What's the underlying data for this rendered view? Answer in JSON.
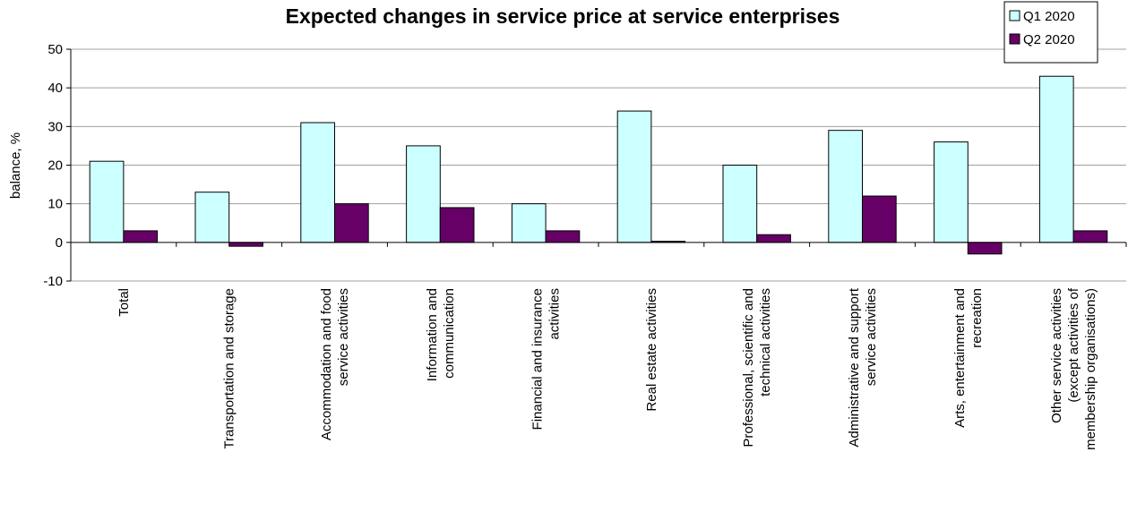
{
  "chart_data": {
    "type": "bar",
    "title": "Expected changes in service price at service enterprises",
    "xlabel": "",
    "ylabel": "balance, %",
    "ylim": [
      -10,
      50
    ],
    "yticks": [
      -10,
      0,
      10,
      20,
      30,
      40,
      50
    ],
    "grid": true,
    "legend_position": "top-right",
    "categories": [
      [
        "Total"
      ],
      [
        "Transportation and storage"
      ],
      [
        "Accommodation and food",
        "service activities"
      ],
      [
        "Information and",
        "communication"
      ],
      [
        "Financial and insurance",
        "activities"
      ],
      [
        "Real estate activities"
      ],
      [
        "Professional, scientific and",
        "technical activities"
      ],
      [
        "Administrative and support",
        "service activities"
      ],
      [
        "Arts, entertainment and",
        "recreation"
      ],
      [
        "Other service activities",
        "(except activities of",
        "membership organisations)"
      ]
    ],
    "series": [
      {
        "name": "Q1 2020",
        "color": "#ccffff",
        "values": [
          21,
          13,
          31,
          25,
          10,
          34,
          20,
          29,
          26,
          43
        ]
      },
      {
        "name": "Q2 2020",
        "color": "#660066",
        "values": [
          3,
          -1,
          10,
          9,
          3,
          0.3,
          2,
          12,
          -3,
          3
        ]
      }
    ]
  }
}
